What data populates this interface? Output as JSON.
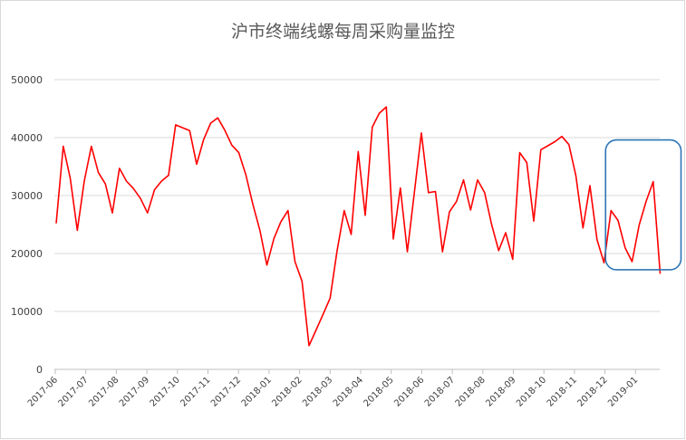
{
  "chart_data": {
    "type": "line",
    "title": "沪市终端线螺每周采购量监控",
    "xlabel": "",
    "ylabel": "",
    "ylim": [
      0,
      50000
    ],
    "yticks": [
      "0",
      "10000",
      "20000",
      "30000",
      "40000",
      "50000"
    ],
    "xticks": [
      "2017-06",
      "2017-07",
      "2017-08",
      "2017-09",
      "2017-10",
      "2017-11",
      "2017-12",
      "2018-01",
      "2018-02",
      "2018-03",
      "2018-04",
      "2018-05",
      "2018-06",
      "2018-07",
      "2018-08",
      "2018-09",
      "2018-10",
      "2018-11",
      "2018-12",
      "2019-01"
    ],
    "grid": true,
    "legend": "none",
    "series": [
      {
        "color": "#ff0000",
        "values": [
          25200,
          38500,
          33000,
          24000,
          32500,
          38500,
          34000,
          32000,
          27000,
          34700,
          32500,
          31200,
          29500,
          27000,
          31000,
          32500,
          33500,
          42200,
          41700,
          41200,
          35400,
          39700,
          42500,
          43400,
          41300,
          38700,
          37400,
          33600,
          28500,
          24000,
          18000,
          22600,
          25500,
          27400,
          18600,
          15200,
          4100,
          6800,
          9500,
          12300,
          20500,
          27400,
          23300,
          37600,
          26600,
          41800,
          44200,
          45300,
          22500,
          31300,
          20300,
          30600,
          40800,
          30500,
          30700,
          20300,
          27200,
          29000,
          32700,
          27500,
          32700,
          30500,
          25000,
          20500,
          23600,
          19000,
          37400,
          35700,
          25600,
          37900,
          38600,
          39300,
          40200,
          38800,
          33400,
          24400,
          31700,
          22400,
          18400,
          27400,
          25700,
          21000,
          18600,
          24900,
          29000,
          32400,
          16500
        ]
      }
    ],
    "highlight": {
      "color": "#2e75b6",
      "from_index": 79,
      "to_index": 86,
      "ylim": [
        17200,
        39600
      ]
    }
  }
}
